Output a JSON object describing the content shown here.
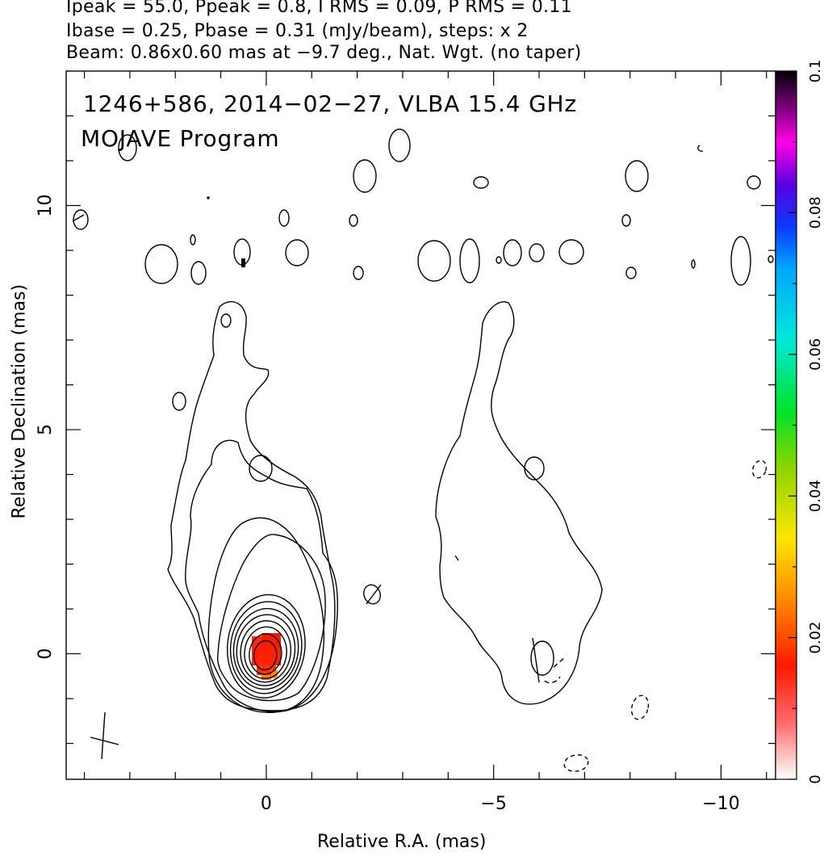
{
  "header": {
    "line1": "Ipeak = 55.0, Ppeak = 0.8, I RMS = 0.09, P RMS = 0.11",
    "line2": "Ibase = 0.25, Pbase = 0.31 (mJy/beam), steps: x 2",
    "line3": "Beam: 0.86x0.60 mas at −9.7 deg., Nat. Wgt. (no taper)"
  },
  "chart_data": {
    "type": "heatmap",
    "xlabel": "Relative R.A. (mas)",
    "ylabel": "Relative Declination (mas)",
    "xlim": [
      4.4,
      -11.2
    ],
    "ylim": [
      -2.8,
      13.0
    ],
    "x_ticks": [
      0,
      -5,
      -10
    ],
    "x_tick_labels": [
      "0",
      "−5",
      "−10"
    ],
    "y_ticks": [
      0,
      5,
      10
    ],
    "y_tick_labels": [
      "0",
      "5",
      "10"
    ],
    "colorbar": {
      "range": [
        0,
        0.1
      ],
      "ticks": [
        0,
        0.02,
        0.04,
        0.06,
        0.08,
        0.1
      ],
      "tick_labels": [
        "0",
        "0.02",
        "0.04",
        "0.06",
        "0.08",
        "0.1"
      ]
    },
    "annotations": [
      "1246+586, 2014−02−27, VLBA 15.4 GHz",
      "MOJAVE Program"
    ],
    "stokes_i_core": {
      "x": 0,
      "y": 0,
      "peak": 55.0
    },
    "polarization_peak": {
      "x": 0,
      "y": 0,
      "value": 0.017
    },
    "beam": {
      "major": 0.86,
      "minor": 0.6,
      "pa": -9.7,
      "x": 3.6,
      "y": -2.0
    },
    "contour_steps": 2
  }
}
